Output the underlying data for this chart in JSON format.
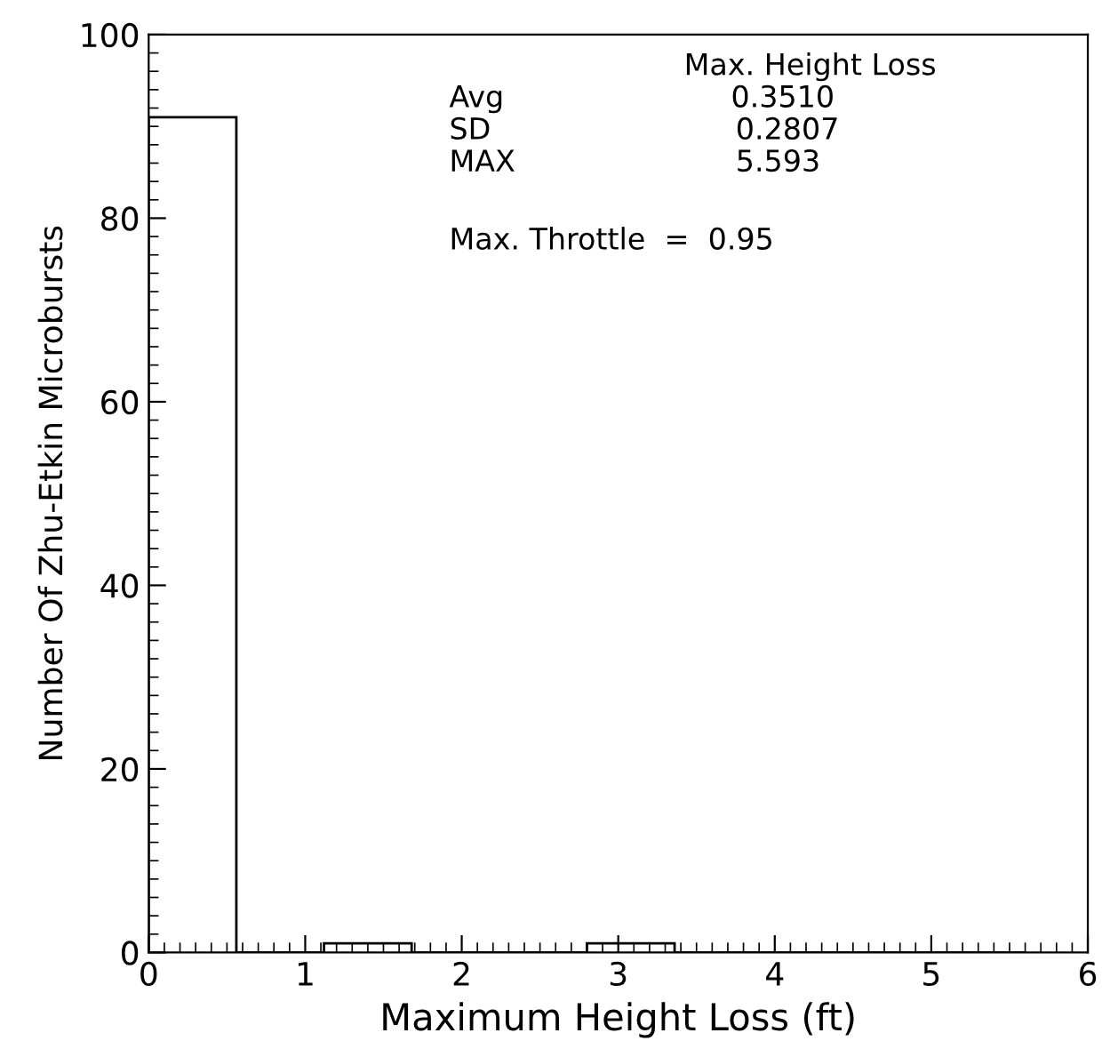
{
  "chart_data": {
    "type": "histogram",
    "xlabel": "Maximum Height Loss (ft)",
    "ylabel": "Number Of Zhu-Etkin Microbursts",
    "bins": [
      0,
      0.56,
      1.12,
      1.68,
      2.24,
      2.8,
      3.36,
      3.92,
      4.48,
      5.04,
      5.6
    ],
    "values": [
      91,
      0,
      1,
      0,
      0,
      1,
      0,
      0,
      0,
      0
    ],
    "color": "#000000",
    "xlim": [
      0,
      6
    ],
    "xticks": [
      0,
      1,
      2,
      3,
      4,
      5,
      6
    ],
    "ylim": [
      0,
      100
    ],
    "yticks": [
      0,
      20,
      40,
      60,
      80,
      100
    ],
    "grid": false,
    "annotations": [
      "Max. Height Loss",
      "Avg",
      "0.3510",
      "SD",
      "0.2807",
      "MAX",
      "5.593",
      "Max. Throttle  =  0.95"
    ]
  }
}
